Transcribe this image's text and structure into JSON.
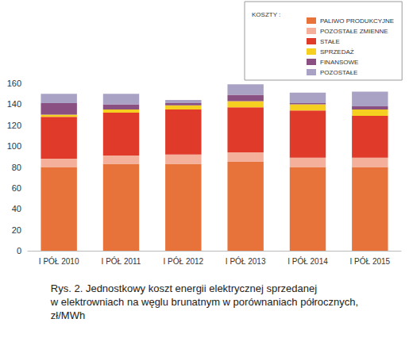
{
  "chart_data": {
    "type": "bar",
    "stacked": true,
    "title": "Rys. 2. Jednostkowy koszt energii elektrycznej sprzedanej\nw elektrowniach na węglu brunatnym w porównaniach półrocznych,\nzł/MWh",
    "legend_title": "KOSZTY :",
    "legend": "top right",
    "grid": false,
    "categories": [
      "I PÓŁ 2010",
      "I PÓŁ 2011",
      "I PÓŁ 2012",
      "I PÓŁ 2013",
      "I PÓŁ 2014",
      "I PÓŁ 2015"
    ],
    "ylim": [
      0,
      160
    ],
    "yticks": [
      0,
      20,
      40,
      60,
      80,
      100,
      120,
      140,
      160
    ],
    "series": [
      {
        "name": "PALIWO PRODUKCYJNE",
        "color": "#e8733a",
        "values": [
          80,
          83,
          83,
          85,
          80,
          80
        ]
      },
      {
        "name": "POZOSTAŁE ZMIENNE",
        "color": "#f4b09a",
        "values": [
          8,
          8,
          9,
          9,
          9,
          9
        ]
      },
      {
        "name": "STAŁE",
        "color": "#e03a2a",
        "values": [
          40,
          41,
          43,
          43,
          45,
          40
        ]
      },
      {
        "name": "SPRZEDAŻ",
        "color": "#f5d020",
        "values": [
          2,
          3,
          4,
          6,
          6,
          6
        ]
      },
      {
        "name": "FINANSOWE",
        "color": "#8a5082",
        "values": [
          11,
          5,
          2,
          6,
          1,
          3
        ]
      },
      {
        "name": "POZOSTAŁE",
        "color": "#a9a2c4",
        "values": [
          9,
          10,
          3,
          10,
          10,
          14
        ]
      }
    ]
  }
}
